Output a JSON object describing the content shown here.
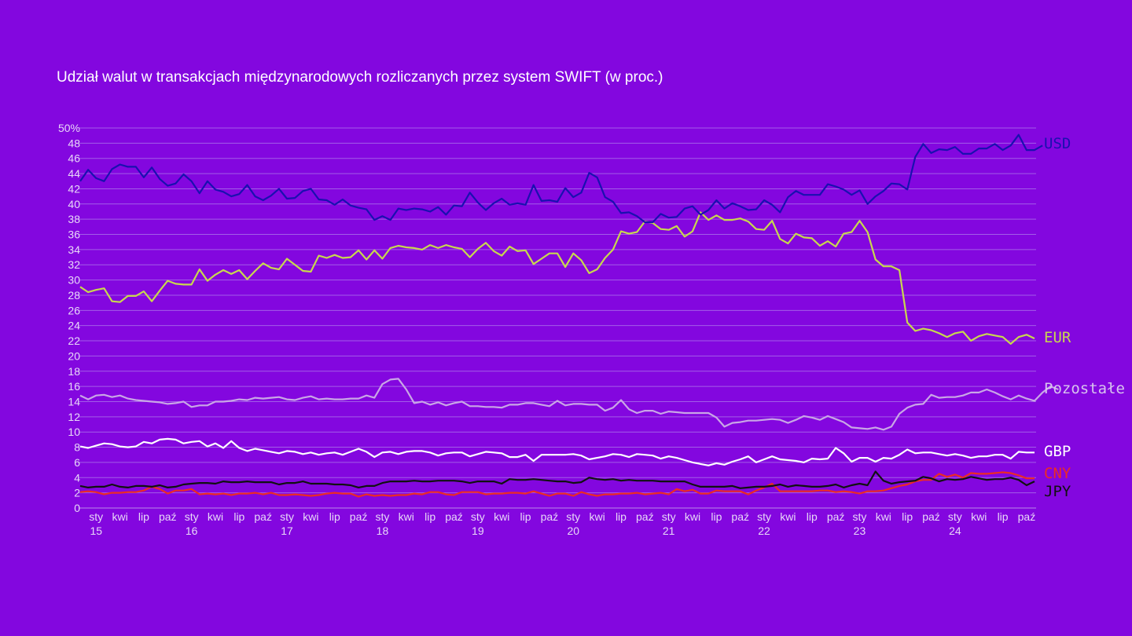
{
  "chart_data": {
    "type": "line",
    "title": "Udział walut w transakcjach międzynarodowych rozliczanych przez system SWIFT (w proc.)",
    "xlabel": "",
    "ylabel": "",
    "ylim": [
      0,
      50
    ],
    "y_ticks": [
      "0",
      "2",
      "4",
      "6",
      "8",
      "10",
      "12",
      "14",
      "16",
      "18",
      "20",
      "22",
      "24",
      "26",
      "28",
      "30",
      "32",
      "34",
      "36",
      "38",
      "40",
      "42",
      "44",
      "46",
      "48",
      "50%"
    ],
    "x_range": [
      "2014-11",
      "2024-11"
    ],
    "x_quarter_labels": [
      "sty",
      "kwi",
      "lip",
      "paź"
    ],
    "x_year_labels": [
      "15",
      "16",
      "17",
      "18",
      "19",
      "20",
      "21",
      "22",
      "23",
      "24"
    ],
    "grid": true,
    "legend_placement": "right (line-end labels)",
    "series": [
      {
        "name": "USD",
        "color": "#1a10b0",
        "values": [
          43.0,
          44.5,
          43.4,
          43.0,
          44.6,
          45.2,
          44.9,
          44.9,
          43.5,
          44.8,
          43.3,
          42.4,
          42.7,
          43.9,
          43.0,
          41.4,
          43.0,
          41.9,
          41.6,
          41.0,
          41.3,
          42.5,
          41.0,
          40.5,
          41.1,
          42.0,
          40.7,
          40.8,
          41.7,
          42.0,
          40.6,
          40.5,
          39.9,
          40.6,
          39.8,
          39.5,
          39.3,
          37.9,
          38.4,
          37.9,
          39.4,
          39.2,
          39.4,
          39.3,
          39.0,
          39.6,
          38.6,
          39.8,
          39.7,
          41.5,
          40.2,
          39.2,
          40.1,
          40.7,
          39.9,
          40.1,
          39.9,
          42.5,
          40.4,
          40.5,
          40.3,
          42.1,
          40.9,
          41.5,
          44.1,
          43.5,
          40.9,
          40.3,
          38.8,
          38.9,
          38.4,
          37.6,
          37.6,
          38.7,
          38.2,
          38.3,
          39.4,
          39.7,
          38.6,
          39.2,
          40.5,
          39.4,
          40.1,
          39.7,
          39.2,
          39.3,
          40.5,
          39.9,
          38.9,
          40.9,
          41.7,
          41.2,
          41.2,
          41.2,
          42.6,
          42.3,
          41.9,
          41.2,
          41.8,
          40.0,
          41.0,
          41.7,
          42.7,
          42.6,
          41.9,
          46.2,
          47.9,
          46.7,
          47.2,
          47.1,
          47.5,
          46.6,
          46.6,
          47.3,
          47.3,
          47.9,
          47.1,
          47.7,
          49.1,
          47.1,
          47.1,
          47.7
        ]
      },
      {
        "name": "EUR",
        "color": "#c8d84e",
        "values": [
          29.1,
          28.4,
          28.7,
          28.9,
          27.2,
          27.1,
          27.9,
          27.9,
          28.5,
          27.2,
          28.6,
          29.9,
          29.5,
          29.4,
          29.4,
          31.4,
          29.9,
          30.7,
          31.3,
          30.8,
          31.3,
          30.1,
          31.2,
          32.2,
          31.6,
          31.4,
          32.8,
          32.0,
          31.2,
          31.1,
          33.2,
          32.9,
          33.3,
          32.9,
          33.0,
          33.9,
          32.7,
          33.9,
          32.8,
          34.2,
          34.5,
          34.3,
          34.2,
          34.0,
          34.6,
          34.2,
          34.6,
          34.3,
          34.1,
          33.0,
          34.1,
          34.9,
          33.8,
          33.2,
          34.4,
          33.8,
          33.9,
          32.1,
          32.8,
          33.5,
          33.5,
          31.7,
          33.5,
          32.6,
          30.9,
          31.4,
          32.9,
          34.0,
          36.4,
          36.1,
          36.3,
          37.7,
          37.5,
          36.7,
          36.6,
          37.1,
          35.7,
          36.4,
          38.9,
          37.9,
          38.5,
          37.9,
          37.9,
          38.1,
          37.7,
          36.7,
          36.6,
          37.8,
          35.4,
          34.8,
          36.1,
          35.6,
          35.5,
          34.5,
          35.1,
          34.4,
          36.1,
          36.3,
          37.8,
          36.3,
          32.7,
          31.8,
          31.8,
          31.3,
          24.4,
          23.3,
          23.6,
          23.4,
          23.0,
          22.5,
          23.0,
          23.2,
          22.0,
          22.6,
          22.9,
          22.7,
          22.5,
          21.6,
          22.5,
          22.8,
          22.3
        ]
      },
      {
        "name": "Pozostałe",
        "color": "#c9a6e6",
        "values": [
          14.8,
          14.3,
          14.8,
          14.9,
          14.6,
          14.8,
          14.4,
          14.2,
          14.1,
          14.0,
          13.9,
          13.7,
          13.8,
          14.0,
          13.3,
          13.5,
          13.5,
          14.0,
          14.0,
          14.1,
          14.3,
          14.2,
          14.5,
          14.4,
          14.5,
          14.6,
          14.3,
          14.2,
          14.5,
          14.7,
          14.3,
          14.4,
          14.3,
          14.3,
          14.4,
          14.4,
          14.8,
          14.5,
          16.3,
          16.9,
          17.0,
          15.6,
          13.8,
          14.0,
          13.6,
          13.9,
          13.5,
          13.8,
          14.0,
          13.4,
          13.4,
          13.3,
          13.3,
          13.2,
          13.6,
          13.6,
          13.8,
          13.8,
          13.6,
          13.4,
          14.1,
          13.5,
          13.7,
          13.7,
          13.6,
          13.6,
          12.8,
          13.2,
          14.2,
          13.0,
          12.5,
          12.8,
          12.8,
          12.4,
          12.7,
          12.6,
          12.5,
          12.5,
          12.5,
          12.5,
          11.9,
          10.7,
          11.2,
          11.3,
          11.5,
          11.5,
          11.6,
          11.7,
          11.6,
          11.2,
          11.6,
          12.1,
          11.9,
          11.6,
          12.1,
          11.7,
          11.3,
          10.6,
          10.5,
          10.4,
          10.6,
          10.3,
          10.7,
          12.4,
          13.2,
          13.6,
          13.7,
          14.9,
          14.5,
          14.6,
          14.6,
          14.8,
          15.2,
          15.2,
          15.6,
          15.2,
          14.7,
          14.3,
          14.8,
          14.4,
          14.1,
          15.2,
          16.0,
          15.6
        ]
      },
      {
        "name": "GBP",
        "color": "#ffffff",
        "values": [
          8.1,
          7.9,
          8.2,
          8.5,
          8.4,
          8.1,
          8.0,
          8.1,
          8.7,
          8.5,
          9.0,
          9.1,
          9.0,
          8.5,
          8.7,
          8.8,
          8.1,
          8.5,
          7.9,
          8.8,
          7.9,
          7.5,
          7.8,
          7.6,
          7.4,
          7.2,
          7.5,
          7.4,
          7.1,
          7.3,
          7.0,
          7.2,
          7.3,
          7.0,
          7.4,
          7.8,
          7.4,
          6.7,
          7.3,
          7.4,
          7.1,
          7.4,
          7.5,
          7.5,
          7.3,
          6.9,
          7.2,
          7.3,
          7.3,
          6.8,
          7.1,
          7.4,
          7.3,
          7.2,
          6.7,
          6.7,
          7.0,
          6.2,
          7.0,
          7.0,
          7.0,
          7.0,
          7.1,
          6.9,
          6.4,
          6.6,
          6.8,
          7.1,
          7.0,
          6.7,
          7.1,
          7.0,
          6.9,
          6.5,
          6.8,
          6.6,
          6.3,
          6.0,
          5.8,
          5.6,
          5.9,
          5.7,
          6.1,
          6.4,
          6.8,
          6.0,
          6.4,
          6.8,
          6.4,
          6.3,
          6.2,
          6.0,
          6.5,
          6.4,
          6.5,
          7.9,
          7.2,
          6.1,
          6.6,
          6.6,
          6.1,
          6.6,
          6.5,
          7.0,
          7.7,
          7.2,
          7.3,
          7.3,
          7.1,
          6.9,
          7.1,
          6.9,
          6.6,
          6.8,
          6.8,
          7.0,
          7.0,
          6.5,
          7.4,
          7.3,
          7.3
        ]
      },
      {
        "name": "CNY",
        "color": "#ec2b24",
        "values": [
          2.1,
          2.2,
          2.1,
          1.8,
          2.0,
          2.0,
          2.1,
          2.1,
          2.3,
          2.8,
          2.5,
          1.9,
          2.3,
          2.3,
          2.5,
          1.8,
          1.9,
          1.8,
          1.9,
          1.7,
          1.9,
          1.9,
          2.0,
          1.8,
          2.0,
          1.7,
          1.7,
          1.8,
          1.7,
          1.6,
          1.7,
          1.9,
          2.0,
          1.9,
          1.9,
          1.5,
          1.8,
          1.6,
          1.7,
          1.6,
          1.7,
          1.7,
          1.9,
          1.8,
          2.1,
          2.1,
          1.8,
          1.7,
          2.1,
          2.1,
          2.1,
          1.8,
          1.9,
          1.9,
          2.0,
          2.0,
          1.9,
          2.2,
          1.9,
          1.6,
          1.9,
          1.9,
          1.6,
          2.1,
          1.8,
          1.6,
          1.8,
          1.8,
          1.9,
          1.9,
          2.0,
          1.8,
          1.9,
          2.0,
          1.8,
          2.5,
          2.2,
          2.4,
          1.9,
          1.9,
          2.3,
          2.2,
          2.2,
          2.2,
          1.8,
          2.3,
          2.7,
          3.2,
          2.2,
          2.2,
          2.2,
          2.2,
          2.2,
          2.3,
          2.3,
          2.1,
          2.2,
          2.1,
          1.9,
          2.2,
          2.2,
          2.3,
          2.6,
          2.9,
          3.1,
          3.5,
          3.7,
          3.7,
          4.5,
          4.1,
          4.4,
          4.0,
          4.6,
          4.5,
          4.5,
          4.6,
          4.7,
          4.6,
          4.3,
          3.9,
          3.9
        ]
      },
      {
        "name": "JPY",
        "color": "#111111",
        "values": [
          2.9,
          2.7,
          2.8,
          2.8,
          3.1,
          2.8,
          2.7,
          2.9,
          2.9,
          2.8,
          3.0,
          2.7,
          2.8,
          3.1,
          3.2,
          3.3,
          3.3,
          3.2,
          3.5,
          3.4,
          3.4,
          3.5,
          3.4,
          3.4,
          3.4,
          3.1,
          3.3,
          3.3,
          3.5,
          3.2,
          3.2,
          3.2,
          3.1,
          3.1,
          3.0,
          2.7,
          2.9,
          2.9,
          3.3,
          3.5,
          3.5,
          3.5,
          3.6,
          3.5,
          3.5,
          3.6,
          3.6,
          3.6,
          3.5,
          3.3,
          3.5,
          3.5,
          3.5,
          3.2,
          3.8,
          3.7,
          3.7,
          3.8,
          3.7,
          3.6,
          3.5,
          3.5,
          3.3,
          3.4,
          4.0,
          3.8,
          3.7,
          3.8,
          3.6,
          3.7,
          3.6,
          3.6,
          3.6,
          3.5,
          3.5,
          3.5,
          3.5,
          3.1,
          2.8,
          2.8,
          2.8,
          2.8,
          2.9,
          2.6,
          2.7,
          2.8,
          2.8,
          2.9,
          3.1,
          2.8,
          3.0,
          2.9,
          2.8,
          2.8,
          2.9,
          3.1,
          2.7,
          3.0,
          3.2,
          3.0,
          4.8,
          3.6,
          3.2,
          3.4,
          3.5,
          3.6,
          4.1,
          3.9,
          3.5,
          3.8,
          3.7,
          3.8,
          4.1,
          3.9,
          3.7,
          3.8,
          3.8,
          4.0,
          3.7,
          3.0,
          3.5
        ]
      }
    ]
  }
}
